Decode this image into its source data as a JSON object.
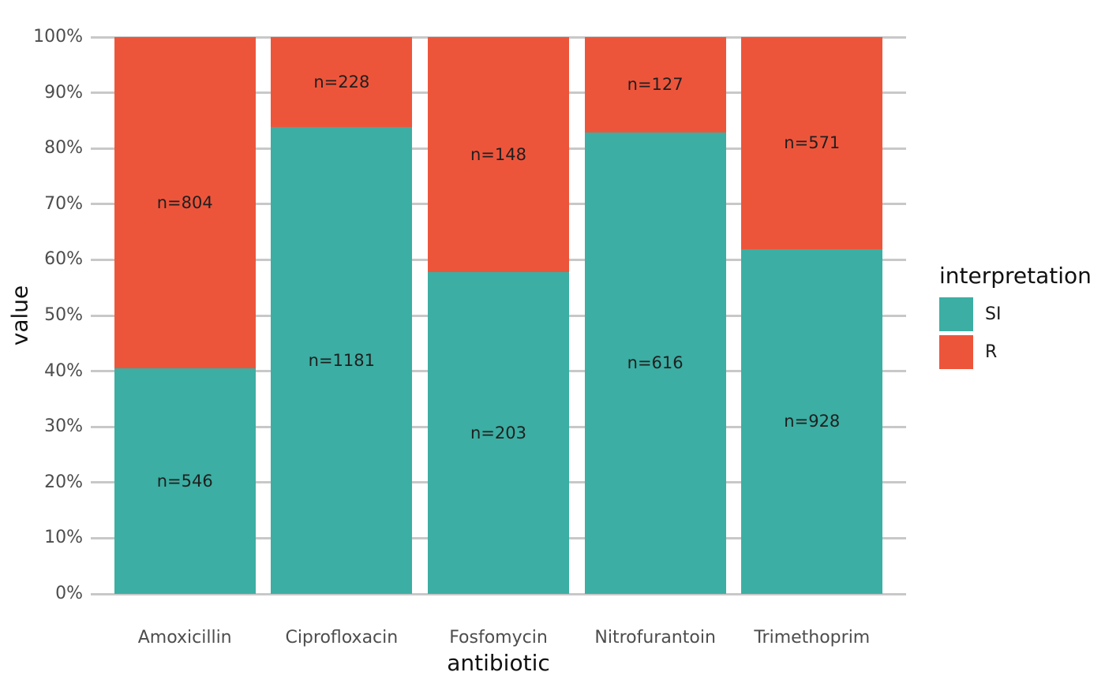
{
  "chart_data": {
    "type": "bar",
    "subtype": "stacked_percent",
    "title": "",
    "xlabel": "antibiotic",
    "ylabel": "value",
    "categories": [
      "Amoxicillin",
      "Ciprofloxacin",
      "Fosfomycin",
      "Nitrofurantoin",
      "Trimethoprim"
    ],
    "series": [
      {
        "name": "SI",
        "color": "#3CAEA3",
        "values": [
          546,
          1181,
          203,
          616,
          928
        ],
        "labels": [
          "n=546",
          "n=1181",
          "n=203",
          "n=616",
          "n=928"
        ]
      },
      {
        "name": "R",
        "color": "#ED553B",
        "values": [
          804,
          228,
          148,
          127,
          571
        ],
        "labels": [
          "n=804",
          "n=228",
          "n=148",
          "n=127",
          "n=571"
        ]
      }
    ],
    "y_ticks": [
      "0%",
      "10%",
      "20%",
      "30%",
      "40%",
      "50%",
      "60%",
      "70%",
      "80%",
      "90%",
      "100%"
    ],
    "ylim": [
      0,
      100
    ],
    "grid": "major_horizontal_only",
    "legend": {
      "title": "interpretation",
      "position": "right",
      "entries": [
        {
          "label": "SI",
          "color": "#3CAEA3"
        },
        {
          "label": "R",
          "color": "#ED553B"
        }
      ]
    },
    "colors": {
      "background": "#FFFFFF",
      "grid": "#C8C8C8",
      "tick_text": "#4D4D4D",
      "axis_title_text": "#111111",
      "bar_label_text": "#1f1f1f"
    }
  }
}
